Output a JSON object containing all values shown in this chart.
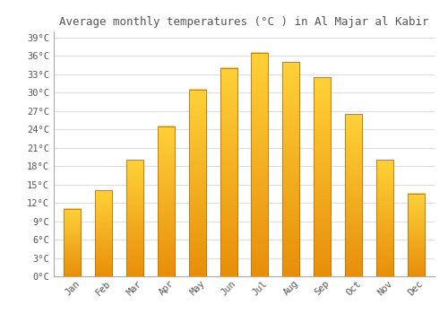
{
  "title": "Average monthly temperatures (°C ) in Al Majar al Kabir",
  "months": [
    "Jan",
    "Feb",
    "Mar",
    "Apr",
    "May",
    "Jun",
    "Jul",
    "Aug",
    "Sep",
    "Oct",
    "Nov",
    "Dec"
  ],
  "values": [
    11,
    14,
    19,
    24.5,
    30.5,
    34,
    36.5,
    35,
    32.5,
    26.5,
    19,
    13.5
  ],
  "bar_color": "#FFBE1E",
  "bar_edge_color": "#C87000",
  "background_color": "#FFFFFF",
  "grid_color": "#DDDDDD",
  "text_color": "#555555",
  "ylim": [
    0,
    40
  ],
  "ytick_step": 3,
  "title_fontsize": 9,
  "tick_fontsize": 7.5,
  "bar_width": 0.55
}
